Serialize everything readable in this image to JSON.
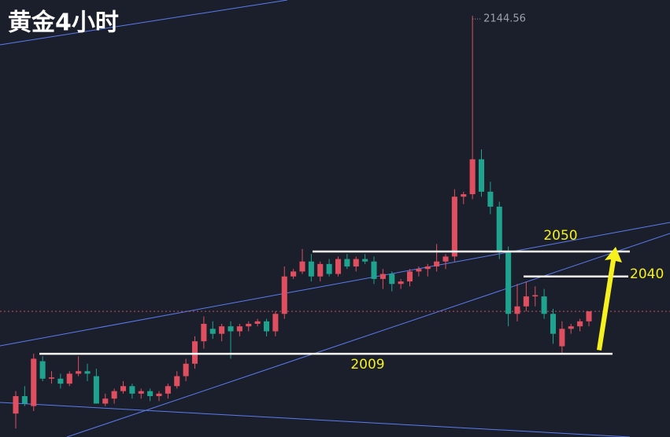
{
  "chart_data": {
    "type": "candlestick",
    "title": "黄金4小时",
    "open": [
      1985,
      1992,
      1988,
      2006,
      1999,
      1999,
      1997,
      2001,
      2002,
      2000,
      1989,
      1991,
      1994,
      1996,
      1993,
      1994,
      1992,
      1993,
      1996,
      2000,
      2005,
      2014,
      2019,
      2017,
      2020,
      2018,
      2020,
      2021,
      2022,
      2018,
      2025,
      2040,
      2042,
      2046,
      2040,
      2045,
      2041,
      2047,
      2044,
      2047,
      2046,
      2039,
      2041,
      2037,
      2038,
      2042,
      2043,
      2044,
      2046,
      2048,
      2072,
      2073,
      2087,
      2074,
      2068,
      2050,
      2025,
      2028,
      2032,
      2032,
      2025,
      2012,
      2019,
      2020,
      2022
    ],
    "high": [
      1994,
      1996,
      2009,
      2008,
      2002,
      2001,
      2002,
      2008,
      2005,
      2003,
      1993,
      1995,
      1998,
      1997,
      1995,
      1995,
      1994,
      1997,
      2002,
      2007,
      2016,
      2024,
      2022,
      2021,
      2022,
      2021,
      2022,
      2023,
      2023,
      2026,
      2044,
      2043,
      2051,
      2049,
      2046,
      2047,
      2048,
      2049,
      2048,
      2049,
      2048,
      2043,
      2042,
      2039,
      2043,
      2044,
      2045,
      2053,
      2049,
      2075,
      2074,
      2144.56,
      2091,
      2078,
      2070,
      2052,
      2037,
      2038,
      2036,
      2035,
      2027,
      2022,
      2021,
      2023,
      2026
    ],
    "low": [
      1979,
      1988,
      1986,
      1998,
      1997,
      1995,
      1996,
      2000,
      1998,
      1990,
      1988,
      1989,
      1993,
      1991,
      1991,
      1990,
      1990,
      1991,
      1995,
      1998,
      2003,
      2011,
      2015,
      2014,
      2007,
      2016,
      2018,
      2020,
      2016,
      2016,
      2023,
      2039,
      2041,
      2038,
      2038,
      2040,
      2040,
      2043,
      2042,
      2045,
      2037,
      2035,
      2034,
      2035,
      2036,
      2040,
      2040,
      2042,
      2043,
      2046,
      2069,
      2071,
      2072,
      2065,
      2047,
      2020,
      2022,
      2026,
      2028,
      2023,
      2013,
      2009,
      2017,
      2018,
      2020
    ],
    "close": [
      1992,
      1989,
      2007,
      1999,
      1999.5,
      1997,
      2001,
      2002,
      2001,
      1989,
      1991,
      1994,
      1996,
      1993,
      1994,
      1992,
      1993,
      1996,
      2000,
      2005,
      2014,
      2021,
      2017,
      2020,
      2018,
      2020,
      2021,
      2022,
      2018,
      2025,
      2040,
      2042,
      2046,
      2040,
      2045,
      2041,
      2047,
      2044,
      2047,
      2046,
      2039,
      2041,
      2037,
      2038,
      2042,
      2043,
      2044,
      2046,
      2048,
      2072,
      2073,
      2087,
      2074,
      2068,
      2050,
      2025,
      2028,
      2032,
      2032.5,
      2025,
      2017,
      2019,
      2020,
      2022,
      2026
    ],
    "up_color": "#e04f5f",
    "down_color": "#1fa38f",
    "ylim": [
      1975.6,
      2150.9
    ],
    "levels": [
      2050,
      2040,
      2009
    ]
  }
}
